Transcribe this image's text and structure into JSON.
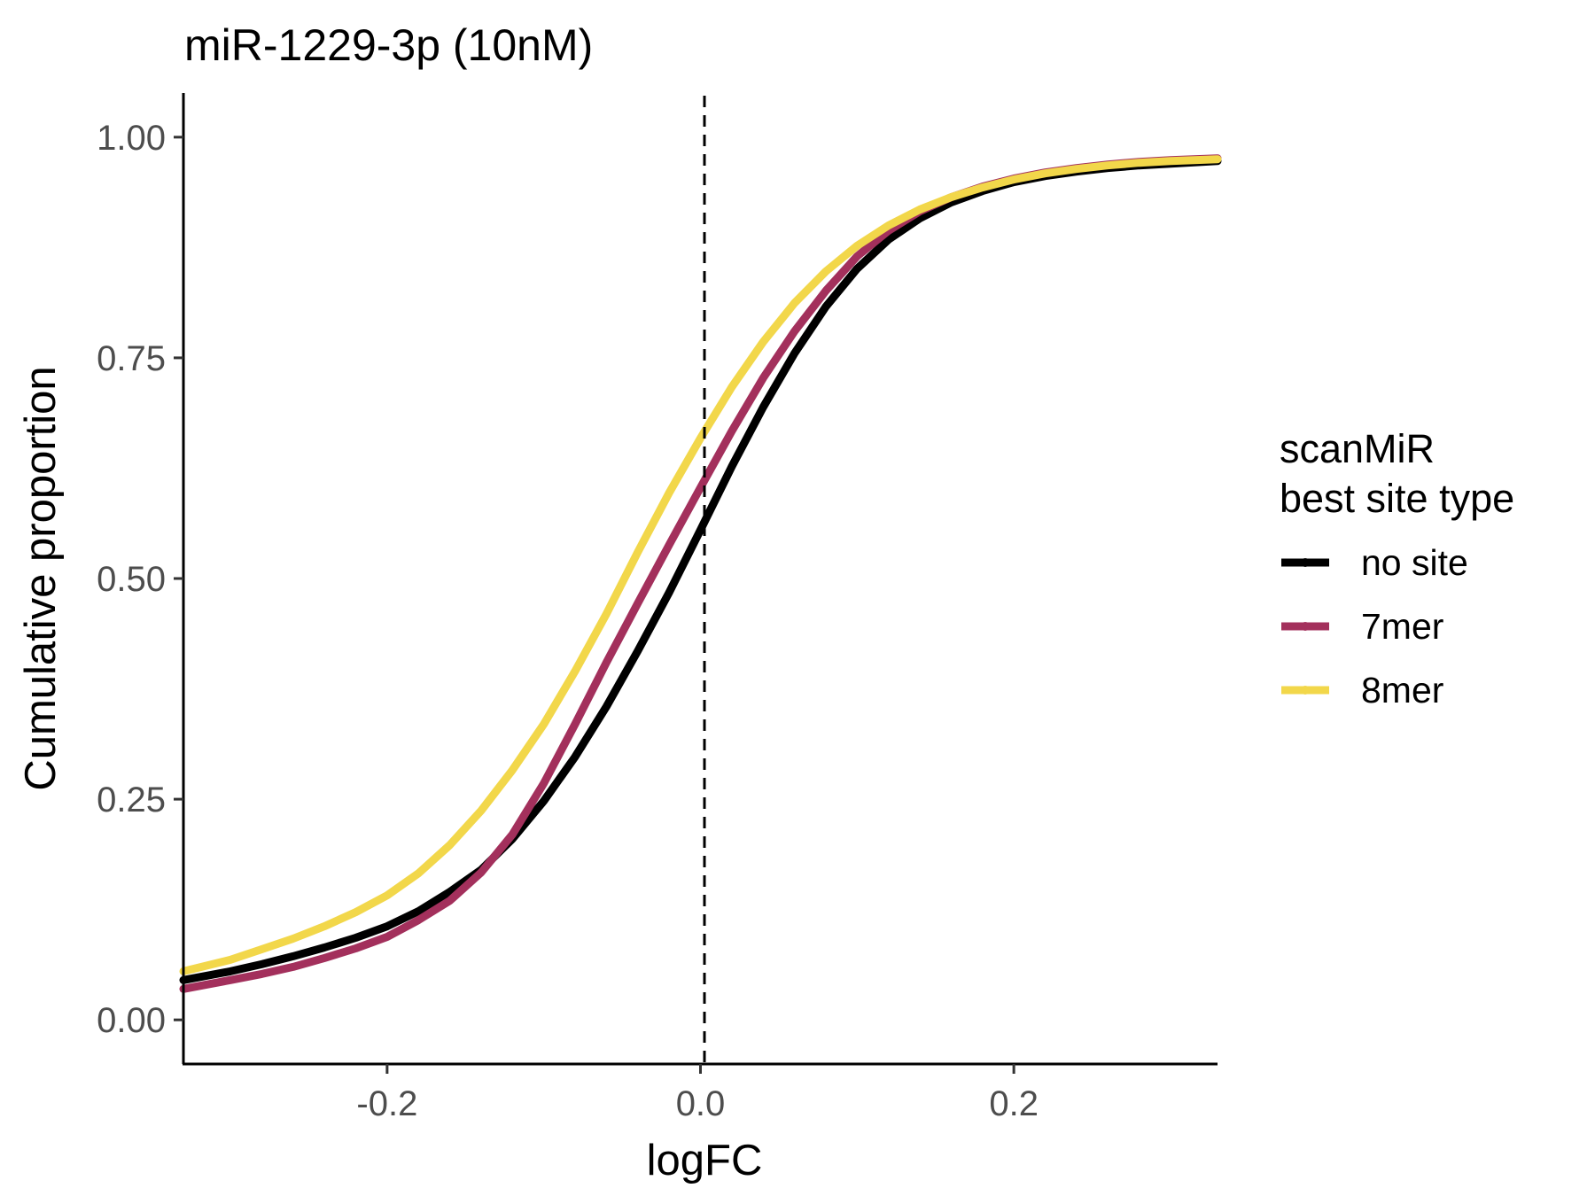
{
  "chart_data": {
    "type": "line",
    "title": "miR-1229-3p (10nM)",
    "xlabel": "logFC",
    "ylabel": "Cumulative proportion",
    "xlim": [
      -0.33,
      0.33
    ],
    "ylim": [
      -0.05,
      1.05
    ],
    "x_ticks": [
      -0.2,
      0.0,
      0.2
    ],
    "x_tick_labels": [
      "-0.2",
      "0.0",
      "0.2"
    ],
    "y_ticks": [
      0.0,
      0.25,
      0.5,
      0.75,
      1.0
    ],
    "y_tick_labels": [
      "0.00",
      "0.25",
      "0.50",
      "0.75",
      "1.00"
    ],
    "grid": false,
    "reference_line": {
      "axis": "x",
      "value": 0.0,
      "style": "dashed"
    },
    "legend": {
      "title_lines": [
        "scanMiR",
        "best site type"
      ],
      "position": "right"
    },
    "series": [
      {
        "name": "no site",
        "color": "#000000",
        "x": [
          -0.33,
          -0.3,
          -0.28,
          -0.26,
          -0.24,
          -0.22,
          -0.2,
          -0.18,
          -0.16,
          -0.14,
          -0.12,
          -0.1,
          -0.08,
          -0.06,
          -0.04,
          -0.02,
          0.0,
          0.02,
          0.04,
          0.06,
          0.08,
          0.1,
          0.12,
          0.14,
          0.16,
          0.18,
          0.2,
          0.22,
          0.24,
          0.26,
          0.28,
          0.3,
          0.33
        ],
        "y": [
          0.045,
          0.055,
          0.063,
          0.072,
          0.082,
          0.093,
          0.106,
          0.123,
          0.145,
          0.17,
          0.205,
          0.248,
          0.298,
          0.355,
          0.418,
          0.484,
          0.555,
          0.627,
          0.694,
          0.755,
          0.808,
          0.851,
          0.884,
          0.908,
          0.926,
          0.939,
          0.949,
          0.956,
          0.961,
          0.965,
          0.968,
          0.97,
          0.973
        ]
      },
      {
        "name": "7mer",
        "color": "#a3305c",
        "x": [
          -0.33,
          -0.3,
          -0.28,
          -0.26,
          -0.24,
          -0.22,
          -0.2,
          -0.18,
          -0.16,
          -0.14,
          -0.12,
          -0.1,
          -0.08,
          -0.06,
          -0.04,
          -0.02,
          0.0,
          0.02,
          0.04,
          0.06,
          0.08,
          0.1,
          0.12,
          0.14,
          0.16,
          0.18,
          0.2,
          0.22,
          0.24,
          0.26,
          0.28,
          0.3,
          0.33
        ],
        "y": [
          0.035,
          0.045,
          0.052,
          0.06,
          0.07,
          0.081,
          0.094,
          0.113,
          0.135,
          0.167,
          0.21,
          0.268,
          0.335,
          0.405,
          0.472,
          0.538,
          0.603,
          0.667,
          0.727,
          0.78,
          0.826,
          0.865,
          0.894,
          0.916,
          0.932,
          0.944,
          0.953,
          0.96,
          0.965,
          0.969,
          0.972,
          0.974,
          0.976
        ]
      },
      {
        "name": "8mer",
        "color": "#f2d74a",
        "x": [
          -0.33,
          -0.3,
          -0.28,
          -0.26,
          -0.24,
          -0.22,
          -0.2,
          -0.18,
          -0.16,
          -0.14,
          -0.12,
          -0.1,
          -0.08,
          -0.06,
          -0.04,
          -0.02,
          0.0,
          0.02,
          0.04,
          0.06,
          0.08,
          0.1,
          0.12,
          0.14,
          0.16,
          0.18,
          0.2,
          0.22,
          0.24,
          0.26,
          0.28,
          0.3,
          0.33
        ],
        "y": [
          0.055,
          0.068,
          0.08,
          0.092,
          0.106,
          0.122,
          0.141,
          0.166,
          0.198,
          0.237,
          0.283,
          0.335,
          0.395,
          0.46,
          0.53,
          0.597,
          0.659,
          0.717,
          0.768,
          0.812,
          0.848,
          0.877,
          0.9,
          0.918,
          0.932,
          0.943,
          0.952,
          0.959,
          0.964,
          0.968,
          0.971,
          0.973,
          0.975
        ]
      }
    ]
  }
}
